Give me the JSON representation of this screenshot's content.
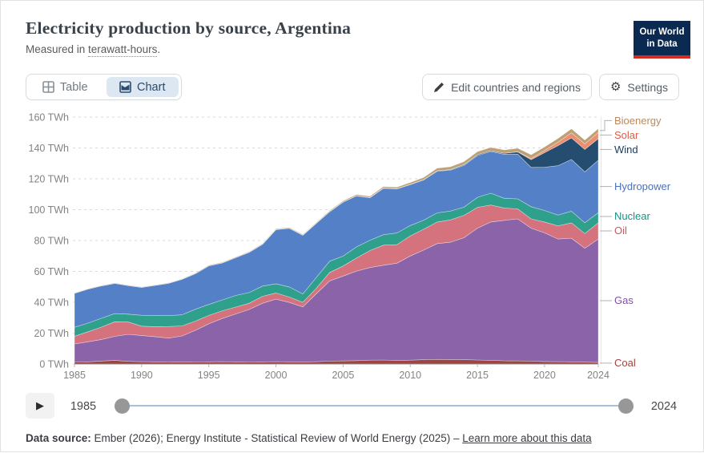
{
  "header": {
    "title": "Electricity production by source, Argentina",
    "subtitle_prefix": "Measured in ",
    "subtitle_underlined": "terawatt-hours",
    "subtitle_suffix": ".",
    "logo_line1": "Our World",
    "logo_line2": "in Data"
  },
  "toolbar": {
    "tab_table": "Table",
    "tab_chart": "Chart",
    "edit_button": "Edit countries and regions",
    "settings_button": "Settings"
  },
  "chart_data": {
    "type": "area",
    "stacked": true,
    "title": "Electricity production by source, Argentina",
    "unit": "TWh",
    "grid": "dashed",
    "ylim": [
      0,
      160
    ],
    "ytick_step": 20,
    "ytick_suffix": " TWh",
    "xticks": [
      1985,
      1990,
      1995,
      2000,
      2005,
      2010,
      2015,
      2020,
      2024
    ],
    "x": [
      1985,
      1986,
      1987,
      1988,
      1989,
      1990,
      1991,
      1992,
      1993,
      1994,
      1995,
      1996,
      1997,
      1998,
      1999,
      2000,
      2001,
      2002,
      2003,
      2004,
      2005,
      2006,
      2007,
      2008,
      2009,
      2010,
      2011,
      2012,
      2013,
      2014,
      2015,
      2016,
      2017,
      2018,
      2019,
      2020,
      2021,
      2022,
      2023,
      2024
    ],
    "series": [
      {
        "name": "Coal",
        "color": "#9b4640",
        "label_color": "#a0433b",
        "values": [
          1.5,
          1.4,
          1.9,
          2.4,
          1.7,
          1.5,
          1.4,
          1.3,
          1.2,
          1.3,
          1.4,
          1.5,
          1.4,
          1.3,
          1.4,
          1.5,
          1.4,
          1.2,
          1.5,
          1.8,
          2.0,
          2.2,
          2.5,
          2.6,
          2.3,
          2.5,
          2.8,
          3.0,
          2.9,
          2.8,
          2.6,
          2.4,
          2.1,
          2.0,
          1.8,
          1.6,
          1.5,
          1.4,
          1.2,
          1.1
        ]
      },
      {
        "name": "Gas",
        "color": "#8a63a9",
        "label_color": "#8252a5",
        "values": [
          11.5,
          13.0,
          14.0,
          15.5,
          17.5,
          17.0,
          16.3,
          15.5,
          17.0,
          20.5,
          24.6,
          28.0,
          31.0,
          34.0,
          38.0,
          40.5,
          38.5,
          35.8,
          44.0,
          52.0,
          55.0,
          58.0,
          60.0,
          61.4,
          63.0,
          67.5,
          71.0,
          75.0,
          76.0,
          79.0,
          85.4,
          89.6,
          91.0,
          92.0,
          86.2,
          83.4,
          79.5,
          80.1,
          73.8,
          79.9
        ]
      },
      {
        "name": "Oil",
        "color": "#d4727d",
        "label_color": "#c65a5f",
        "values": [
          5.0,
          6.5,
          8.0,
          9.5,
          8.0,
          6.0,
          6.5,
          7.5,
          6.5,
          6.0,
          5.5,
          5.0,
          4.5,
          4.0,
          4.5,
          4.0,
          3.5,
          3.0,
          3.5,
          5.5,
          6.5,
          8.5,
          11.0,
          13.0,
          12.0,
          13.0,
          13.5,
          14.0,
          14.5,
          14.5,
          13.5,
          11.0,
          8.0,
          6.5,
          6.0,
          7.0,
          8.5,
          10.0,
          9.5,
          10.5
        ]
      },
      {
        "name": "Nuclear",
        "color": "#2ea08c",
        "label_color": "#159385",
        "values": [
          5.8,
          5.6,
          5.7,
          5.3,
          5.1,
          7.1,
          7.2,
          7.0,
          7.2,
          7.7,
          7.1,
          7.0,
          7.5,
          7.0,
          6.6,
          6.0,
          6.5,
          5.4,
          7.0,
          7.3,
          6.4,
          7.2,
          6.7,
          6.8,
          7.6,
          6.7,
          5.9,
          5.9,
          5.7,
          5.3,
          6.5,
          7.7,
          6.3,
          6.5,
          7.9,
          7.5,
          7.0,
          7.5,
          7.0,
          6.5
        ]
      },
      {
        "name": "Hydropower",
        "color": "#5380c6",
        "label_color": "#4c71b6",
        "values": [
          22.0,
          22.0,
          21.0,
          19.5,
          18.5,
          18.0,
          19.5,
          21.0,
          23.0,
          23.0,
          25.0,
          24.0,
          24.5,
          26.0,
          27.0,
          35.0,
          38.0,
          38.0,
          35.0,
          32.0,
          35.0,
          33.0,
          27.5,
          30.0,
          28.5,
          26.5,
          26.0,
          27.0,
          26.5,
          27.0,
          27.0,
          27.0,
          28.5,
          29.0,
          25.5,
          28.0,
          32.0,
          33.5,
          33.0,
          34.0
        ]
      },
      {
        "name": "Wind",
        "color": "#254d70",
        "label_color": "#1a3a5e",
        "values": [
          0,
          0,
          0,
          0,
          0,
          0,
          0,
          0,
          0,
          0,
          0,
          0,
          0,
          0.1,
          0.1,
          0.1,
          0.2,
          0.2,
          0.2,
          0.2,
          0.2,
          0.2,
          0.2,
          0.2,
          0.2,
          0.2,
          0.3,
          0.3,
          0.4,
          0.6,
          0.6,
          0.5,
          0.6,
          1.4,
          5.0,
          9.5,
          13.0,
          14.0,
          14.5,
          14.0
        ]
      },
      {
        "name": "Solar",
        "color": "#ee8e70",
        "label_color": "#d4604a",
        "values": [
          0,
          0,
          0,
          0,
          0,
          0,
          0,
          0,
          0,
          0,
          0,
          0,
          0,
          0,
          0,
          0,
          0,
          0,
          0,
          0,
          0,
          0,
          0,
          0,
          0,
          0,
          0,
          0,
          0,
          0,
          0,
          0,
          0,
          0.1,
          0.8,
          1.3,
          2.2,
          3.3,
          3.6,
          4.0
        ]
      },
      {
        "name": "Bioenergy",
        "color": "#bfa074",
        "label_color": "#bb8a5f",
        "values": [
          0.3,
          0.3,
          0.3,
          0.3,
          0.3,
          0.3,
          0.3,
          0.3,
          0.3,
          0.4,
          0.4,
          0.4,
          0.4,
          0.4,
          0.4,
          0.5,
          0.4,
          0.4,
          0.5,
          0.5,
          0.6,
          0.7,
          0.8,
          0.9,
          1.0,
          1.2,
          1.4,
          1.7,
          1.8,
          1.9,
          2.0,
          2.1,
          2.2,
          2.3,
          2.4,
          2.4,
          2.5,
          2.6,
          2.5,
          2.5
        ]
      }
    ]
  },
  "timeline": {
    "play_icon": "▶",
    "start_label": "1985",
    "end_label": "2024"
  },
  "footer": {
    "prefix_bold": "Data source:",
    "text": " Ember (2026); Energy Institute - Statistical Review of World Energy (2025) – ",
    "link": "Learn more about this data"
  }
}
